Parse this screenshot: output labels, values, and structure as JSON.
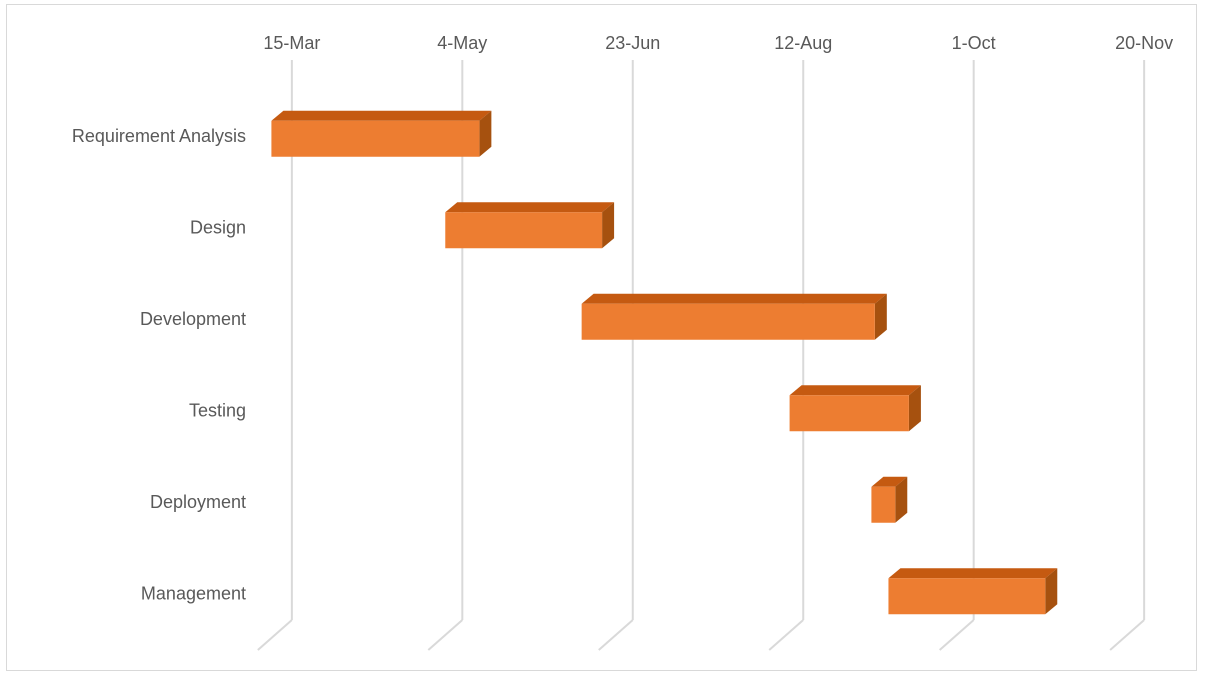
{
  "chart_data": {
    "type": "bar",
    "subtype": "gantt",
    "orientation": "horizontal",
    "style": "3d",
    "title": "",
    "xlabel": "",
    "ylabel": "",
    "x_axis_position": "top",
    "x_ticks": [
      "15-Mar",
      "4-May",
      "23-Jun",
      "12-Aug",
      "1-Oct",
      "20-Nov"
    ],
    "x_tick_dates": [
      "2000-03-15",
      "2000-05-04",
      "2000-06-23",
      "2000-08-12",
      "2000-10-01",
      "2000-11-20"
    ],
    "xlim": [
      "2000-03-08",
      "2000-11-27"
    ],
    "gridlines": "vertical major",
    "legend": "none",
    "categories": [
      "Requirement Analysis",
      "Design",
      "Development",
      "Testing",
      "Deployment",
      "Management"
    ],
    "series": [
      {
        "values": [
          {
            "start": "2000-03-09",
            "end": "2000-05-09"
          },
          {
            "start": "2000-04-29",
            "end": "2000-06-14"
          },
          {
            "start": "2000-06-08",
            "end": "2000-09-02"
          },
          {
            "start": "2000-08-08",
            "end": "2000-09-12"
          },
          {
            "start": "2000-09-01",
            "end": "2000-09-08"
          },
          {
            "start": "2000-09-06",
            "end": "2000-10-22"
          }
        ],
        "color": "#ED7D31",
        "top_color": "#C55A11",
        "side_color": "#A6510F"
      }
    ],
    "grid_color": "#D9D9D9",
    "label_color": "#595959",
    "border_color": "#D9D9D9"
  }
}
